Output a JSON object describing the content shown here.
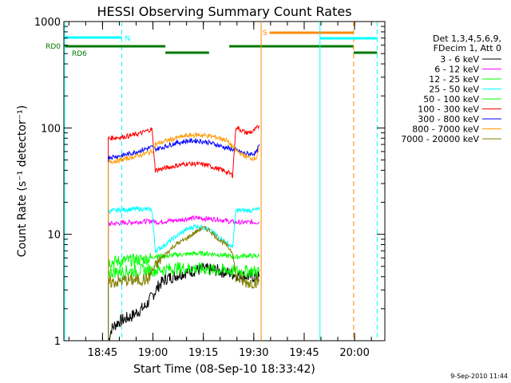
{
  "chart_data": {
    "type": "line",
    "title": "HESSI Observing Summary Count Rates",
    "xlabel": "Start Time (08-Sep-10 18:33:42)",
    "ylabel": "Count Rate (s⁻¹ detector⁻¹)",
    "ylog": true,
    "ylim": [
      1,
      1000
    ],
    "xlim_minutes": [
      -0.2,
      95.3
    ],
    "yticks": [
      {
        "value": 1,
        "label": "1"
      },
      {
        "value": 10,
        "label": "10"
      },
      {
        "value": 100,
        "label": "100"
      },
      {
        "value": 1000,
        "label": "1000"
      }
    ],
    "xticks": [
      {
        "t": 11.3,
        "label": "18:45"
      },
      {
        "t": 26.3,
        "label": "19:00"
      },
      {
        "t": 41.3,
        "label": "19:15"
      },
      {
        "t": 56.3,
        "label": "19:30"
      },
      {
        "t": 71.3,
        "label": "19:45"
      },
      {
        "t": 86.3,
        "label": "20:00"
      }
    ],
    "legend": {
      "placement": "right",
      "header": [
        "Det 1,3,4,5,6,9,",
        "FDecim 1, Att 0"
      ]
    },
    "series": [
      {
        "name": "3 - 6 keV",
        "color": "#000000",
        "points": [
          [
            13,
            1.0
          ],
          [
            14,
            1.3
          ],
          [
            16,
            1.5
          ],
          [
            18,
            1.6
          ],
          [
            20,
            1.7
          ],
          [
            22,
            1.9
          ],
          [
            24,
            2.1
          ],
          [
            26,
            2.6
          ],
          [
            28,
            3.3
          ],
          [
            30,
            3.8
          ],
          [
            33,
            4.1
          ],
          [
            36,
            4.4
          ],
          [
            39,
            4.6
          ],
          [
            42,
            4.7
          ],
          [
            45,
            4.6
          ],
          [
            48,
            4.4
          ],
          [
            51,
            4.2
          ],
          [
            53,
            4.1
          ],
          [
            55,
            4.0
          ],
          [
            58,
            4.0
          ]
        ]
      },
      {
        "name": "6 - 12 keV",
        "color": "#ff00ff",
        "points": [
          [
            13,
            12.5
          ],
          [
            17,
            12.8
          ],
          [
            20,
            13.0
          ],
          [
            23,
            13.2
          ],
          [
            26,
            13.3
          ],
          [
            28,
            13.0
          ],
          [
            31,
            13.4
          ],
          [
            34,
            13.6
          ],
          [
            37,
            14.1
          ],
          [
            40,
            14.2
          ],
          [
            43,
            14.0
          ],
          [
            46,
            13.8
          ],
          [
            49,
            13.2
          ],
          [
            51,
            13.0
          ],
          [
            53,
            12.9
          ],
          [
            55,
            13.0
          ],
          [
            58,
            13.0
          ]
        ]
      },
      {
        "name": "12 - 25 keV",
        "color": "#00ff00",
        "points": [
          [
            13,
            5.5
          ],
          [
            17,
            5.6
          ],
          [
            20,
            5.7
          ],
          [
            23,
            5.8
          ],
          [
            26,
            6.0
          ],
          [
            27,
            6.3
          ],
          [
            30,
            6.2
          ],
          [
            33,
            6.4
          ],
          [
            36,
            6.5
          ],
          [
            39,
            6.6
          ],
          [
            42,
            6.6
          ],
          [
            45,
            6.5
          ],
          [
            48,
            6.3
          ],
          [
            51,
            6.1
          ],
          [
            53,
            6.3
          ],
          [
            55,
            6.3
          ],
          [
            58,
            6.2
          ]
        ]
      },
      {
        "name": "25 - 50 keV",
        "color": "#00ffff",
        "points": [
          [
            13,
            16.5
          ],
          [
            17,
            17.0
          ],
          [
            20,
            17.2
          ],
          [
            23,
            17.3
          ],
          [
            26,
            17.0
          ],
          [
            27,
            7.0
          ],
          [
            30,
            8.0
          ],
          [
            33,
            9.5
          ],
          [
            36,
            11.0
          ],
          [
            39,
            12.0
          ],
          [
            42,
            11.5
          ],
          [
            45,
            10.0
          ],
          [
            48,
            8.5
          ],
          [
            50,
            7.5
          ],
          [
            51,
            16.8
          ],
          [
            55,
            16.8
          ],
          [
            58,
            17.0
          ]
        ]
      },
      {
        "name": "50 - 100 keV",
        "color": "#00ff00",
        "points": [
          [
            13,
            4.4
          ],
          [
            17,
            4.5
          ],
          [
            20,
            4.5
          ],
          [
            23,
            4.6
          ],
          [
            26,
            4.6
          ],
          [
            27,
            4.6
          ],
          [
            30,
            4.7
          ],
          [
            33,
            4.8
          ],
          [
            36,
            4.8
          ],
          [
            39,
            4.8
          ],
          [
            42,
            4.7
          ],
          [
            45,
            4.6
          ],
          [
            48,
            4.6
          ],
          [
            51,
            4.5
          ],
          [
            53,
            4.5
          ],
          [
            55,
            4.5
          ],
          [
            58,
            4.5
          ]
        ]
      },
      {
        "name": "100 - 300 keV",
        "color": "#ff0000",
        "points": [
          [
            13,
            80
          ],
          [
            17,
            82
          ],
          [
            20,
            85
          ],
          [
            23,
            90
          ],
          [
            26,
            98
          ],
          [
            27,
            40
          ],
          [
            30,
            42
          ],
          [
            33,
            44
          ],
          [
            36,
            46
          ],
          [
            39,
            46
          ],
          [
            42,
            45
          ],
          [
            45,
            42
          ],
          [
            48,
            39
          ],
          [
            50,
            36
          ],
          [
            51,
            102
          ],
          [
            54,
            90
          ],
          [
            56,
            92
          ],
          [
            58,
            105
          ]
        ]
      },
      {
        "name": "300 - 800 keV",
        "color": "#0000ff",
        "points": [
          [
            13,
            53
          ],
          [
            17,
            55
          ],
          [
            20,
            58
          ],
          [
            23,
            62
          ],
          [
            26,
            66
          ],
          [
            27,
            63
          ],
          [
            30,
            67
          ],
          [
            33,
            72
          ],
          [
            36,
            75
          ],
          [
            39,
            76
          ],
          [
            42,
            74
          ],
          [
            45,
            70
          ],
          [
            48,
            65
          ],
          [
            51,
            62
          ],
          [
            53,
            58
          ],
          [
            55,
            57
          ],
          [
            57,
            58
          ],
          [
            58,
            70
          ]
        ]
      },
      {
        "name": "800 - 7000 keV",
        "color": "#ff9900",
        "points": [
          [
            13,
            48
          ],
          [
            17,
            50
          ],
          [
            20,
            53
          ],
          [
            23,
            56
          ],
          [
            26,
            60
          ],
          [
            27,
            70
          ],
          [
            30,
            75
          ],
          [
            33,
            80
          ],
          [
            36,
            84
          ],
          [
            39,
            86
          ],
          [
            42,
            85
          ],
          [
            45,
            82
          ],
          [
            48,
            77
          ],
          [
            51,
            62
          ],
          [
            53,
            56
          ],
          [
            55,
            52
          ],
          [
            57,
            52
          ],
          [
            58,
            65
          ]
        ]
      },
      {
        "name": "7000 - 20000 keV",
        "color": "#808000",
        "points": [
          [
            13,
            3.5
          ],
          [
            16,
            3.6
          ],
          [
            19,
            3.7
          ],
          [
            22,
            3.7
          ],
          [
            25,
            3.8
          ],
          [
            26,
            4.5
          ],
          [
            28,
            5.5
          ],
          [
            30,
            6.5
          ],
          [
            33,
            8.0
          ],
          [
            36,
            9.0
          ],
          [
            39,
            10.5
          ],
          [
            41,
            11.5
          ],
          [
            43,
            11.0
          ],
          [
            45,
            9.5
          ],
          [
            48,
            8.0
          ],
          [
            50,
            6.8
          ],
          [
            51,
            4.0
          ],
          [
            53,
            3.6
          ],
          [
            55,
            3.5
          ],
          [
            58,
            3.6
          ]
        ]
      }
    ],
    "flags": [
      {
        "label": "N",
        "color": "#00ffff",
        "segments": [
          [
            0,
            17
          ]
        ],
        "dashed_line_t": 17
      },
      {
        "label": "RD0",
        "color": "#007700",
        "segments": [
          [
            0,
            30
          ],
          [
            49,
            86
          ]
        ],
        "dashed_line_t": null
      },
      {
        "label": "RD6",
        "color": "#007700",
        "segments": [
          [
            30,
            43
          ],
          [
            86,
            93
          ]
        ],
        "dashed_line_t": null
      },
      {
        "label": "S",
        "color": "#ff8800",
        "segments": [
          [
            61,
            86
          ]
        ],
        "dashed_line_t": 86
      },
      {
        "label": "",
        "color": "#00ffff",
        "segments": [
          [
            76,
            93
          ]
        ],
        "dashed_line_t": 93
      }
    ],
    "vlines": [
      {
        "t": 0,
        "color": "#00ffff",
        "dashed": false
      },
      {
        "t": 58.5,
        "color": "#ff8800",
        "dashed": false
      },
      {
        "t": 76,
        "color": "#00ffff",
        "dashed": false
      }
    ]
  },
  "footer": {
    "timestamp": "9-Sep-2010 11:44"
  }
}
